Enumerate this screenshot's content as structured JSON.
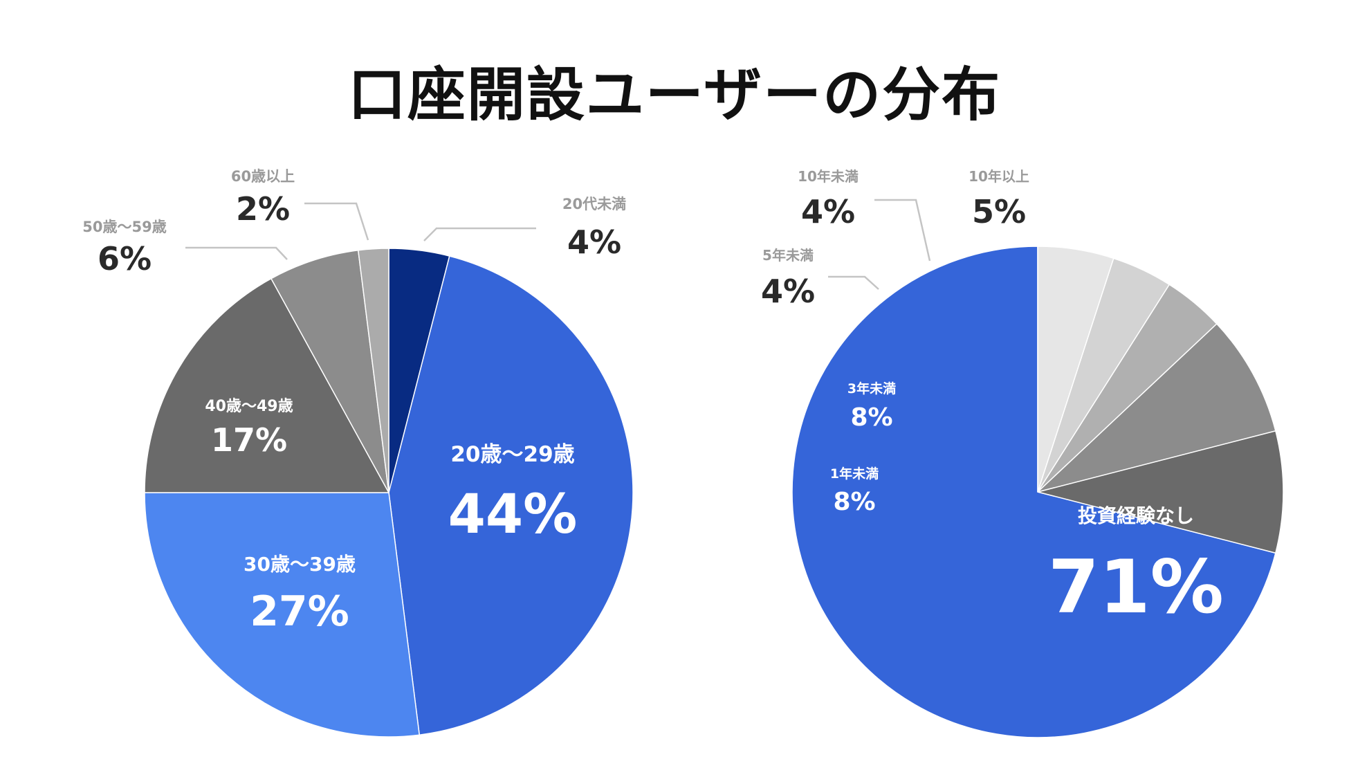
{
  "title": "口座開設ユーザーの分布",
  "chart_data": [
    {
      "type": "pie",
      "title": "",
      "slices": [
        {
          "label": "20代未満",
          "value": 4,
          "display": "4%",
          "color": "#082b82"
        },
        {
          "label": "20歳〜29歳",
          "value": 44,
          "display": "44%",
          "color": "#3565d9"
        },
        {
          "label": "30歳〜39歳",
          "value": 27,
          "display": "27%",
          "color": "#4d86f0"
        },
        {
          "label": "40歳〜49歳",
          "value": 17,
          "display": "17%",
          "color": "#6a6a6a"
        },
        {
          "label": "50歳〜59歳",
          "value": 6,
          "display": "6%",
          "color": "#8c8c8c"
        },
        {
          "label": "60歳以上",
          "value": 2,
          "display": "2%",
          "color": "#ababab"
        }
      ]
    },
    {
      "type": "pie",
      "title": "",
      "slices": [
        {
          "label": "投資経験なし",
          "value": 71,
          "display": "71%",
          "color": "#3565d9"
        },
        {
          "label": "1年未満",
          "value": 8,
          "display": "8%",
          "color": "#6a6a6a"
        },
        {
          "label": "3年未満",
          "value": 8,
          "display": "8%",
          "color": "#8c8c8c"
        },
        {
          "label": "5年未満",
          "value": 4,
          "display": "4%",
          "color": "#b0b0b0"
        },
        {
          "label": "10年未満",
          "value": 4,
          "display": "4%",
          "color": "#d3d3d3"
        },
        {
          "label": "10年以上",
          "value": 5,
          "display": "5%",
          "color": "#e6e6e6"
        }
      ]
    }
  ]
}
